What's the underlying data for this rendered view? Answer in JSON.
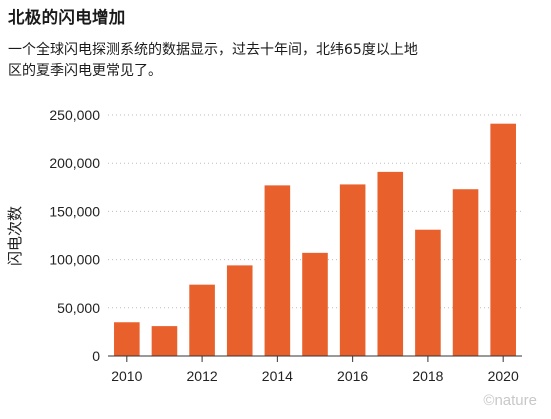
{
  "title": "北极的闪电增加",
  "subtitle": "一个全球闪电探测系统的数据显示，过去十年间，北纬65度以上地区的夏季闪电更常见了。",
  "credit": "©nature",
  "colors": {
    "bar": "#e8602c"
  },
  "chart_data": {
    "type": "bar",
    "title": "北极的闪电增加",
    "ylabel": "闪电次数",
    "xlabel": "",
    "x": [
      2010,
      2011,
      2012,
      2013,
      2014,
      2015,
      2016,
      2017,
      2018,
      2019,
      2020
    ],
    "values": [
      35000,
      31000,
      74000,
      94000,
      177000,
      107000,
      178000,
      191000,
      131000,
      173000,
      241000
    ],
    "ylim": [
      0,
      250000
    ],
    "yticks": [
      0,
      50000,
      100000,
      150000,
      200000,
      250000
    ],
    "ytick_labels": [
      "0",
      "50,000",
      "100,000",
      "150,000",
      "200,000",
      "250,000"
    ],
    "xticks": [
      2010,
      2012,
      2014,
      2016,
      2018,
      2020
    ],
    "grid": true
  }
}
